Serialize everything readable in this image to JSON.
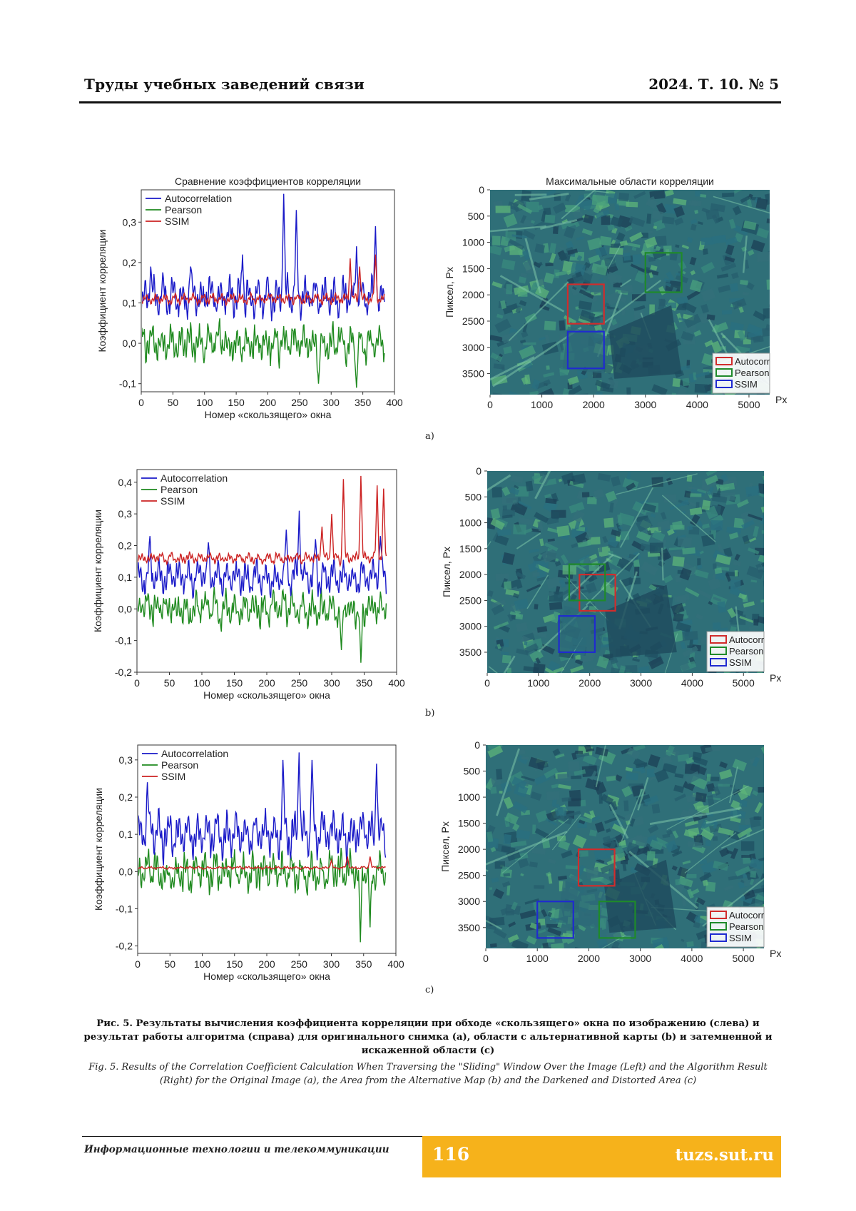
{
  "header": {
    "journal": "Труды учебных заведений связи",
    "issue": "2024. Т. 10. № 5"
  },
  "colors": {
    "autocorrelation": "#1a1ac8",
    "pearson": "#1f8a1f",
    "ssim": "#cc2222",
    "map_base": "#2f6f78",
    "accent_footer": "#f6b21b"
  },
  "panels": [
    {
      "sub_label": "a)",
      "chart_data": {
        "type": "line",
        "title": "Сравнение коэффициентов корреляции",
        "xlabel": "Номер «скользящего» окна",
        "ylabel": "Коэффициент корреляции",
        "xlim": [
          0,
          400
        ],
        "ylim": [
          -0.12,
          0.38
        ],
        "x_ticks": [
          "0",
          "50",
          "100",
          "150",
          "200",
          "250",
          "300",
          "350",
          "400"
        ],
        "y_ticks": [
          "-0,1",
          "0,0",
          "0,1",
          "0,2",
          "0,3"
        ],
        "y_tick_values": [
          -0.1,
          0.0,
          0.1,
          0.2,
          0.3
        ],
        "legend": "top-left",
        "n_points": 385,
        "series": [
          {
            "name": "Autocorrelation",
            "mean": 0.115,
            "amplitude": 0.045,
            "noise": 0.028,
            "peaks": [
              [
                15,
                0.19
              ],
              [
                78,
                0.19
              ],
              [
                160,
                0.22
              ],
              [
                225,
                0.37
              ],
              [
                245,
                0.33
              ],
              [
                340,
                0.24
              ],
              [
                370,
                0.29
              ]
            ]
          },
          {
            "name": "Pearson",
            "mean": 0.0,
            "amplitude": 0.04,
            "noise": 0.035,
            "peaks": [
              [
                340,
                -0.11
              ],
              [
                280,
                -0.1
              ]
            ]
          },
          {
            "name": "SSIM",
            "mean": 0.11,
            "amplitude": 0.012,
            "noise": 0.006,
            "peaks": [
              [
                330,
                0.21
              ],
              [
                345,
                0.19
              ],
              [
                370,
                0.22
              ]
            ]
          }
        ]
      },
      "map": {
        "title": "Максимальные области корреляции",
        "ylabel": "Пиксел, Px",
        "xlabel": "Px",
        "x_ticks": [
          "0",
          "1000",
          "2000",
          "3000",
          "4000",
          "5000"
        ],
        "y_ticks": [
          "0",
          "500",
          "1000",
          "1500",
          "2000",
          "2500",
          "3000",
          "3500"
        ],
        "legend": [
          "Autocorr",
          "Pearson",
          "SSIM"
        ],
        "boxes": [
          {
            "name": "Autocorr",
            "x": 1500,
            "y": 1800,
            "w": 700,
            "h": 750
          },
          {
            "name": "Pearson",
            "x": 3000,
            "y": 1200,
            "w": 700,
            "h": 750
          },
          {
            "name": "SSIM",
            "x": 1500,
            "y": 2700,
            "w": 700,
            "h": 700
          }
        ]
      }
    },
    {
      "sub_label": "b)",
      "chart_data": {
        "type": "line",
        "title": "",
        "xlabel": "Номер «скользящего» окна",
        "ylabel": "Коэффициент корреляции",
        "xlim": [
          0,
          400
        ],
        "ylim": [
          -0.2,
          0.44
        ],
        "x_ticks": [
          "0",
          "50",
          "100",
          "150",
          "200",
          "250",
          "300",
          "350",
          "400"
        ],
        "y_ticks": [
          "-0,2",
          "-0,1",
          "0,0",
          "0,1",
          "0,2",
          "0,3",
          "0,4"
        ],
        "y_tick_values": [
          -0.2,
          -0.1,
          0.0,
          0.1,
          0.2,
          0.3,
          0.4
        ],
        "legend": "top-left",
        "n_points": 385,
        "series": [
          {
            "name": "Autocorrelation",
            "mean": 0.1,
            "amplitude": 0.05,
            "noise": 0.03,
            "peaks": [
              [
                20,
                0.23
              ],
              [
                110,
                0.21
              ],
              [
                230,
                0.25
              ],
              [
                250,
                0.31
              ],
              [
                275,
                0.22
              ],
              [
                375,
                0.23
              ]
            ]
          },
          {
            "name": "Pearson",
            "mean": 0.0,
            "amplitude": 0.045,
            "noise": 0.04,
            "peaks": [
              [
                345,
                -0.17
              ],
              [
                315,
                -0.13
              ]
            ]
          },
          {
            "name": "SSIM",
            "mean": 0.16,
            "amplitude": 0.015,
            "noise": 0.01,
            "peaks": [
              [
                285,
                0.26
              ],
              [
                300,
                0.3
              ],
              [
                318,
                0.41
              ],
              [
                345,
                0.42
              ],
              [
                370,
                0.39
              ],
              [
                380,
                0.38
              ]
            ]
          }
        ]
      },
      "map": {
        "title": "",
        "ylabel": "Пиксел, Px",
        "xlabel": "Px",
        "x_ticks": [
          "0",
          "1000",
          "2000",
          "3000",
          "4000",
          "5000"
        ],
        "y_ticks": [
          "0",
          "500",
          "1000",
          "1500",
          "2000",
          "2500",
          "3000",
          "3500"
        ],
        "legend": [
          "Autocorr",
          "Pearson",
          "SSIM"
        ],
        "boxes": [
          {
            "name": "Autocorr",
            "x": 1800,
            "y": 2000,
            "w": 700,
            "h": 700
          },
          {
            "name": "Pearson",
            "x": 1600,
            "y": 1800,
            "w": 700,
            "h": 700
          },
          {
            "name": "SSIM",
            "x": 1400,
            "y": 2800,
            "w": 700,
            "h": 700
          }
        ]
      }
    },
    {
      "sub_label": "c)",
      "chart_data": {
        "type": "line",
        "title": "",
        "xlabel": "Номер «скользящего» окна",
        "ylabel": "Коэффициент корреляции",
        "xlim": [
          0,
          400
        ],
        "ylim": [
          -0.22,
          0.34
        ],
        "x_ticks": [
          "0",
          "50",
          "100",
          "150",
          "200",
          "250",
          "300",
          "350",
          "400"
        ],
        "y_ticks": [
          "-0,2",
          "-0,1",
          "0,0",
          "0,1",
          "0,2",
          "0,3"
        ],
        "y_tick_values": [
          -0.2,
          -0.1,
          0.0,
          0.1,
          0.2,
          0.3
        ],
        "legend": "top-left",
        "n_points": 385,
        "series": [
          {
            "name": "Autocorrelation",
            "mean": 0.1,
            "amplitude": 0.055,
            "noise": 0.035,
            "peaks": [
              [
                15,
                0.24
              ],
              [
                225,
                0.3
              ],
              [
                250,
                0.32
              ],
              [
                270,
                0.3
              ],
              [
                370,
                0.29
              ]
            ]
          },
          {
            "name": "Pearson",
            "mean": 0.0,
            "amplitude": 0.045,
            "noise": 0.04,
            "peaks": [
              [
                345,
                -0.19
              ],
              [
                360,
                -0.15
              ]
            ]
          },
          {
            "name": "SSIM",
            "mean": 0.01,
            "amplitude": 0.003,
            "noise": 0.003,
            "peaks": [
              [
                300,
                0.03
              ],
              [
                325,
                0.04
              ],
              [
                360,
                0.04
              ]
            ]
          }
        ]
      },
      "map": {
        "title": "",
        "ylabel": "Пиксел, Px",
        "xlabel": "Px",
        "x_ticks": [
          "0",
          "1000",
          "2000",
          "3000",
          "4000",
          "5000"
        ],
        "y_ticks": [
          "0",
          "500",
          "1000",
          "1500",
          "2000",
          "2500",
          "3000",
          "3500"
        ],
        "legend": [
          "Autocorr",
          "Pearson",
          "SSIM"
        ],
        "boxes": [
          {
            "name": "Autocorr",
            "x": 1800,
            "y": 2000,
            "w": 700,
            "h": 700
          },
          {
            "name": "Pearson",
            "x": 2200,
            "y": 3000,
            "w": 700,
            "h": 700
          },
          {
            "name": "SSIM",
            "x": 1000,
            "y": 3000,
            "w": 700,
            "h": 700
          }
        ]
      }
    }
  ],
  "caption": {
    "ru": "Рис. 5. Результаты вычисления коэффициента корреляции при обходе «скользящего» окна по изображению (слева) и результат работы алгоритма (справа) для оригинального снимка (a), области с альтернативной карты (b) и затемненной и искаженной области (c)",
    "en": "Fig. 5. Results of the Correlation Coefficient Calculation When Traversing the \"Sliding\" Window Over the Image (Left) and the Algorithm Result (Right) for the Original Image (a), the Area from the Alternative Map (b) and the Darkened and Distorted Area (c)"
  },
  "footer": {
    "section": "Информационные технологии и телекоммуникации",
    "page": "116",
    "site": "tuzs.sut.ru"
  }
}
